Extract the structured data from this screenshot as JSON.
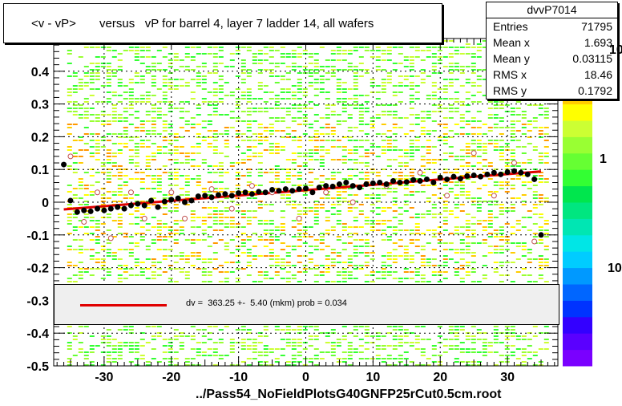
{
  "title": "<v - vP>       versus   vP for barrel 4, layer 7 ladder 14, all wafers",
  "stats": {
    "name": "dvvP7014",
    "rows": [
      {
        "label": "Entries",
        "value": "71795"
      },
      {
        "label": "Mean x",
        "value": "1.693"
      },
      {
        "label": "Mean y",
        "value": "0.03115"
      },
      {
        "label": "RMS x",
        "value": "18.46"
      },
      {
        "label": "RMS y",
        "value": "0.1792"
      }
    ]
  },
  "fit_label": "dv =  363.25 +-  5.40 (mkm) prob = 0.034",
  "footer": "../Pass54_NoFieldPlotsG40GNFP25rCut0.5cm.root",
  "palette": {
    "labels": [
      "10",
      "1",
      "10"
    ],
    "colors": [
      "#7a00ff",
      "#5a00ff",
      "#3300ff",
      "#0033ff",
      "#0066ff",
      "#0099ff",
      "#00ccff",
      "#00e6e6",
      "#00e6b3",
      "#00e680",
      "#00e64d",
      "#33ff33",
      "#66ff33",
      "#99ff33",
      "#ccff33",
      "#ffff00",
      "#ffcc00",
      "#ff9900",
      "#ff6600",
      "#ff3300"
    ]
  },
  "chart_data": {
    "type": "scatter",
    "title": "<v - vP>       versus   vP for barrel 4, layer 7 ladder 14, all wafers",
    "xlim": [
      -37.5,
      37.5
    ],
    "ylim": [
      -0.5,
      0.5
    ],
    "x_ticks": [
      -30,
      -20,
      -10,
      0,
      10,
      20,
      30
    ],
    "y_ticks": [
      -0.5,
      -0.4,
      -0.3,
      -0.2,
      -0.1,
      0,
      0.1,
      0.2,
      0.3,
      0.4
    ],
    "y_tick_labels": [
      "-0.5",
      "-0.4",
      "-0.3",
      "-0.2",
      "-0.1",
      "0",
      "0.1",
      "0.2",
      "0.3",
      "0.4"
    ],
    "fit_line": {
      "x": [
        -36,
        35
      ],
      "y": [
        -0.022,
        0.094
      ]
    },
    "profile": {
      "x": [
        -36,
        -35,
        -34,
        -33,
        -32,
        -31,
        -30,
        -29,
        -28,
        -27,
        -26,
        -25,
        -24,
        -23,
        -22,
        -21,
        -20,
        -19,
        -18,
        -17,
        -16,
        -15,
        -14,
        -13,
        -12,
        -11,
        -10,
        -9,
        -8,
        -7,
        -6,
        -5,
        -4,
        -3,
        -2,
        -1,
        0,
        1,
        2,
        3,
        4,
        5,
        6,
        7,
        8,
        9,
        10,
        11,
        12,
        13,
        14,
        15,
        16,
        17,
        18,
        19,
        20,
        21,
        22,
        23,
        24,
        25,
        26,
        27,
        28,
        29,
        30,
        31,
        32,
        33,
        34,
        35
      ],
      "y": [
        0.115,
        0.005,
        -0.03,
        -0.025,
        -0.028,
        -0.02,
        -0.025,
        -0.02,
        -0.015,
        -0.02,
        -0.01,
        -0.005,
        -0.01,
        0.005,
        -0.015,
        0.002,
        0.008,
        0.012,
        0.0,
        0.005,
        0.018,
        0.02,
        0.015,
        0.022,
        0.025,
        0.02,
        0.028,
        0.03,
        0.025,
        0.032,
        0.03,
        0.038,
        0.035,
        0.04,
        0.035,
        0.04,
        0.042,
        0.03,
        0.045,
        0.05,
        0.048,
        0.055,
        0.06,
        0.05,
        0.045,
        0.055,
        0.058,
        0.06,
        0.055,
        0.065,
        0.06,
        0.062,
        0.068,
        0.065,
        0.07,
        0.06,
        0.075,
        0.07,
        0.078,
        0.072,
        0.08,
        0.082,
        0.078,
        0.085,
        0.09,
        0.085,
        0.092,
        0.095,
        0.09,
        0.085,
        0.07,
        -0.1
      ]
    },
    "outliers": {
      "x": [
        -35,
        -33,
        -31,
        -29,
        -26,
        -24,
        -20,
        -18,
        -14,
        -11,
        -8,
        -5,
        -1,
        3,
        7,
        12,
        17,
        21,
        25,
        28,
        31,
        34
      ],
      "y": [
        0.14,
        -0.06,
        0.03,
        -0.11,
        0.03,
        -0.05,
        0.03,
        -0.05,
        0.04,
        -0.02,
        0.05,
        0.03,
        -0.05,
        0.03,
        0.0,
        0.05,
        0.09,
        0.02,
        0.15,
        0.02,
        0.12,
        -0.12
      ]
    },
    "grid": true,
    "legend": "top-right"
  }
}
